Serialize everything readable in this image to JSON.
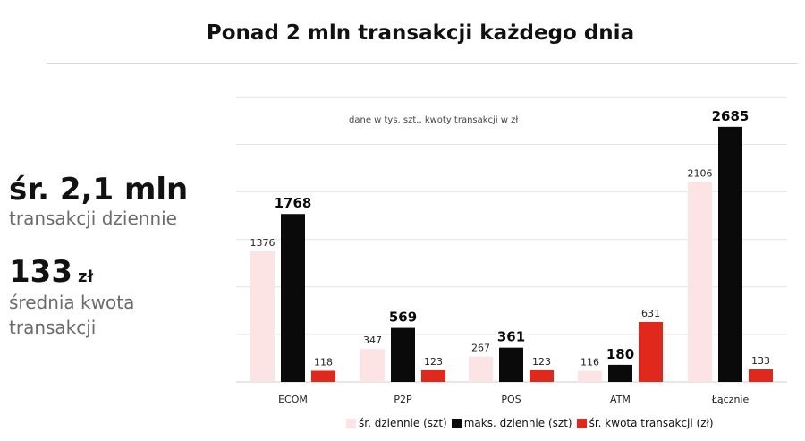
{
  "title": "Ponad 2 mln transakcji każdego dnia",
  "kpis": {
    "daily_value": "śr. 2,1 mln",
    "daily_caption": "transakcji dziennie",
    "avg_value": "133",
    "avg_unit": "zł",
    "avg_caption": "średnia kwota transakcji"
  },
  "colors": {
    "avg_daily": "#fce4e4",
    "max_daily": "#0a0a0a",
    "avg_amount": "#e0281c",
    "grid": "#e4e4e4"
  },
  "chart_data": {
    "type": "bar",
    "note": "dane w tys. szt., kwoty transakcji w zł",
    "categories": [
      "ECOM",
      "P2P",
      "POS",
      "ATM",
      "Łącznie"
    ],
    "series": [
      {
        "name": "śr. dziennie (szt)",
        "values": [
          1376,
          347,
          267,
          116,
          2106
        ]
      },
      {
        "name": "maks. dziennie (szt)",
        "values": [
          1768,
          569,
          361,
          180,
          2685
        ]
      },
      {
        "name": "śr. kwota transakcji (zł)",
        "values": [
          118,
          123,
          123,
          631,
          133
        ]
      }
    ],
    "ylim": [
      0,
      3000
    ],
    "grid": true,
    "legend_position": "bottom"
  }
}
